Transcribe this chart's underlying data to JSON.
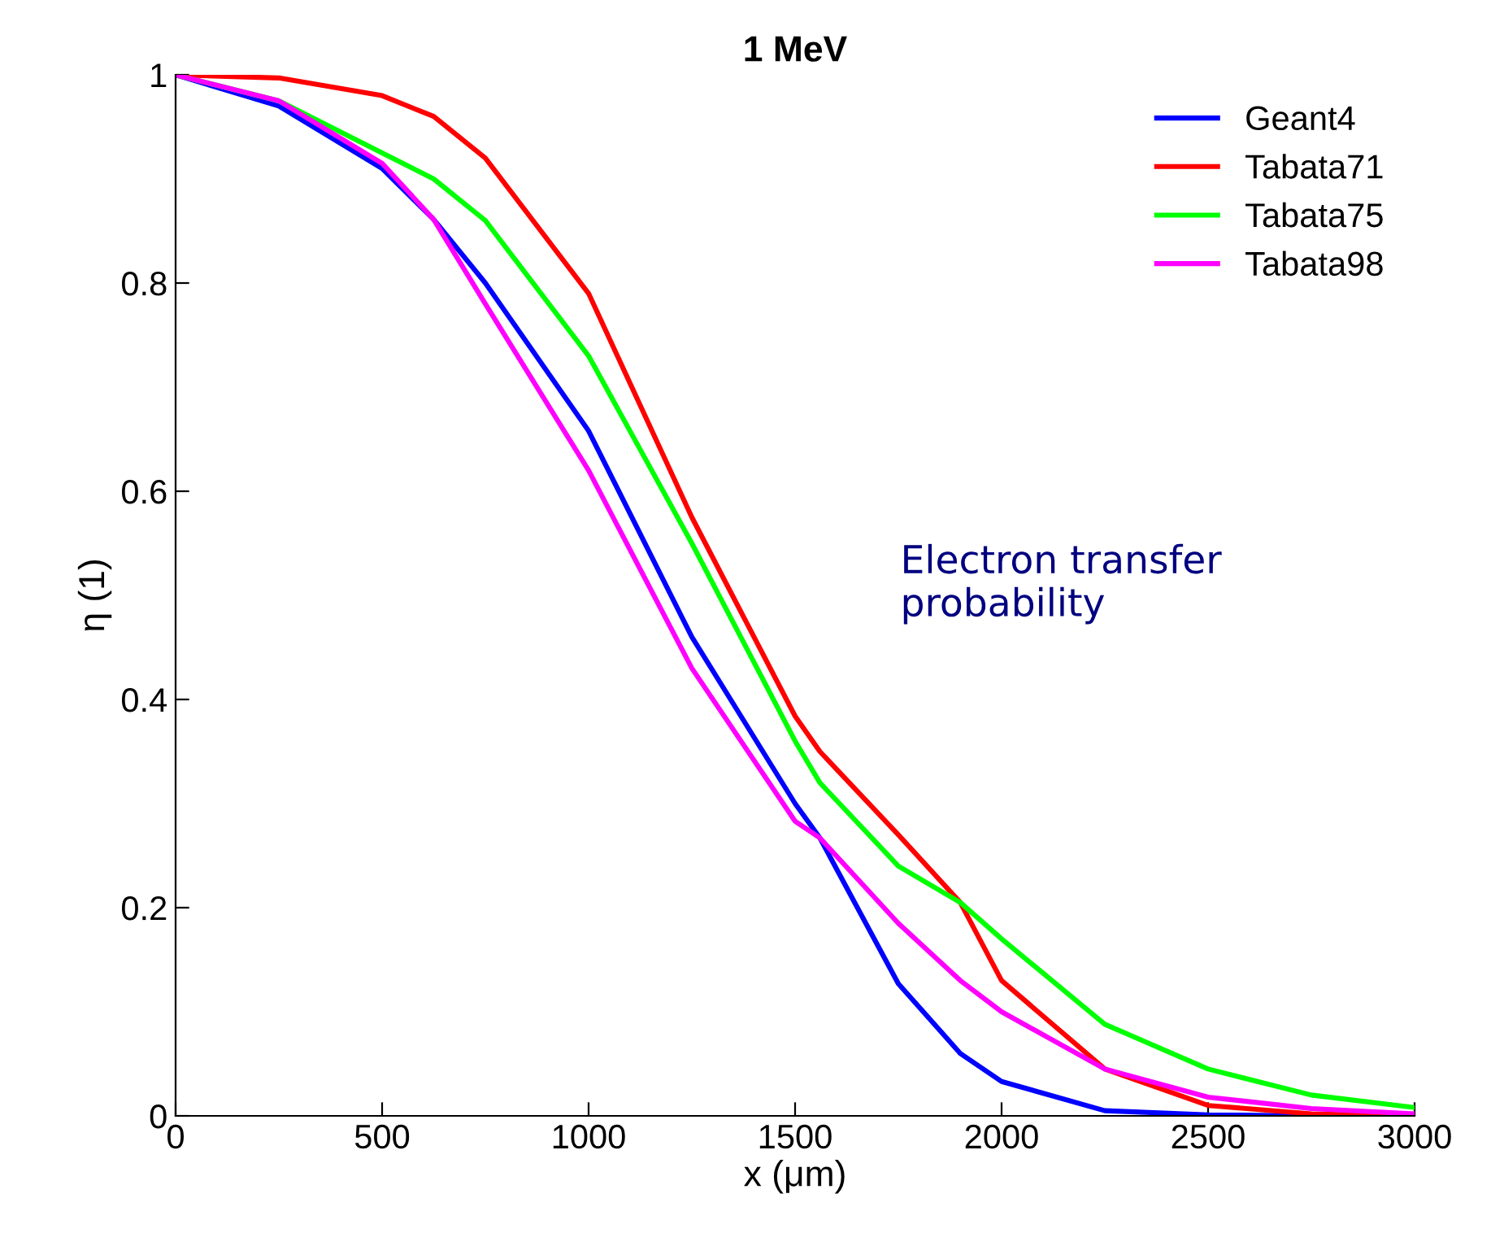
{
  "chart_data": {
    "type": "line",
    "title": "1 MeV",
    "xlabel": "x (μm)",
    "ylabel": "η (1)",
    "x": [
      0,
      250,
      500,
      625,
      750,
      1000,
      1250,
      1500,
      1560,
      1750,
      1900,
      2000,
      2250,
      2500,
      2750,
      3000
    ],
    "series": [
      {
        "name": "Geant4",
        "color": "#0000ff",
        "values": [
          1,
          0.97,
          0.91,
          0.861,
          0.8,
          0.658,
          0.46,
          0.3,
          0.267,
          0.127,
          0.06,
          0.033,
          0.005,
          0.001,
          0,
          0
        ]
      },
      {
        "name": "Tabata71",
        "color": "#ff0000",
        "values": [
          1,
          0.997,
          0.98,
          0.96,
          0.92,
          0.79,
          0.575,
          0.384,
          0.35,
          0.27,
          0.205,
          0.13,
          0.045,
          0.01,
          0.002,
          0
        ]
      },
      {
        "name": "Tabata75",
        "color": "#00ff00",
        "values": [
          1,
          0.975,
          0.925,
          0.9,
          0.86,
          0.73,
          0.55,
          0.36,
          0.32,
          0.24,
          0.205,
          0.17,
          0.088,
          0.045,
          0.02,
          0.008
        ]
      },
      {
        "name": "Tabata98",
        "color": "#ff00ff",
        "values": [
          1,
          0.975,
          0.915,
          0.861,
          0.78,
          0.62,
          0.43,
          0.283,
          0.267,
          0.185,
          0.13,
          0.1,
          0.045,
          0.018,
          0.007,
          0.002
        ]
      }
    ],
    "xlim": [
      0,
      3000
    ],
    "ylim": [
      0,
      1
    ],
    "xticks": [
      0,
      500,
      1000,
      1500,
      2000,
      2500,
      3000
    ],
    "yticks": [
      0,
      0.2,
      0.4,
      0.6,
      0.8,
      1
    ],
    "grid": false,
    "legend": "top right",
    "marker": "none",
    "line_style": "solid",
    "annotations": [
      "Electron transfer\nprobability"
    ]
  }
}
